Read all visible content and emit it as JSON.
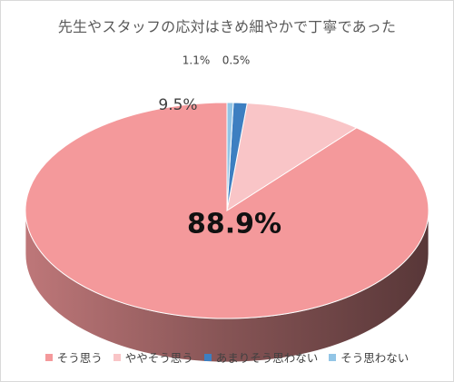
{
  "chart_data": {
    "type": "pie",
    "title": "先生やスタッフの応対はきめ細やかで丁寧であった",
    "categories": [
      "そう思う",
      "ややそう思う",
      "あまりそう思わない",
      "そう思わない"
    ],
    "values": [
      88.9,
      9.5,
      1.1,
      0.5
    ],
    "labels": [
      "88.9%",
      "9.5%",
      "1.1%",
      "0.5%"
    ],
    "colors": [
      "#f4999b",
      "#f9c5c7",
      "#3d7fc1",
      "#92c5e6"
    ],
    "legend": "bottom",
    "style": "3d"
  }
}
